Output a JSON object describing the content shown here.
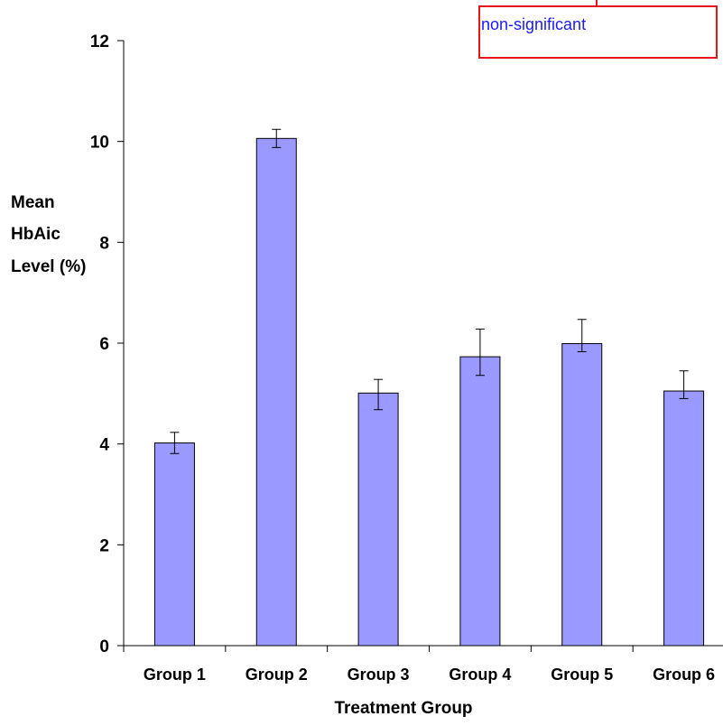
{
  "chart_data": {
    "type": "bar",
    "title": "",
    "xlabel": "Treatment Group",
    "ylabel_lines": [
      "Mean",
      "HbAic",
      "Level (%)"
    ],
    "categories": [
      "Group 1",
      "Group 2",
      "Group 3",
      "Group 4",
      "Group 5",
      "Group 6"
    ],
    "series": [
      {
        "values": [
          4.02,
          10.06,
          5.01,
          5.73,
          5.99,
          5.05
        ],
        "error_plus": [
          0.21,
          0.18,
          0.27,
          0.55,
          0.48,
          0.4
        ],
        "error_minus": [
          0.21,
          0.18,
          0.33,
          0.37,
          0.16,
          0.15
        ]
      }
    ],
    "ylim": [
      0,
      12
    ],
    "yticks": [
      "0",
      "2",
      "4",
      "6",
      "8",
      "10",
      "12"
    ],
    "grid": false,
    "legend": "none",
    "bar_color": "#9999ff",
    "annotation": "non-significant",
    "annotation_text_color": "#1a1aff",
    "annotation_border_color": "#e8141b"
  }
}
